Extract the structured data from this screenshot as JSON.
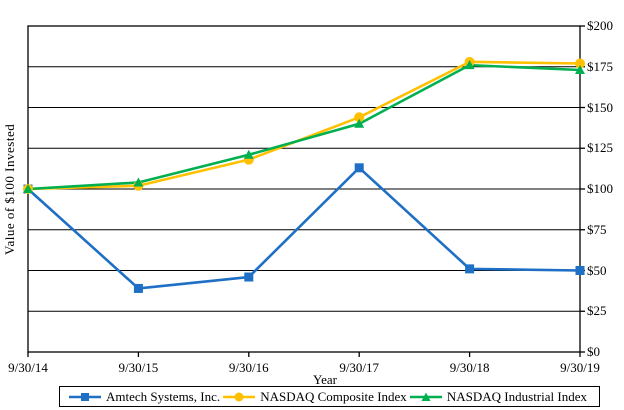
{
  "chart_data": {
    "type": "line",
    "x_categories": [
      "9/30/14",
      "9/30/15",
      "9/30/16",
      "9/30/17",
      "9/30/18",
      "9/30/19"
    ],
    "series": [
      {
        "name": "Amtech Systems, Inc.",
        "color": "#1F6FC5",
        "marker": "square",
        "values": [
          100,
          39,
          46,
          113,
          51,
          50
        ]
      },
      {
        "name": "NASDAQ Composite Index",
        "color": "#FFC000",
        "marker": "circle",
        "values": [
          100,
          102,
          118,
          144,
          178,
          177
        ]
      },
      {
        "name": "NASDAQ Industrial Index",
        "color": "#00B050",
        "marker": "triangle",
        "values": [
          100,
          104,
          121,
          140,
          176,
          173
        ]
      }
    ],
    "xlabel": "Year",
    "ylabel": "Value of $100 Invested",
    "ylim": [
      0,
      200
    ],
    "yticks": [
      {
        "label": "$200",
        "value": 200
      },
      {
        "label": "$175",
        "value": 175
      },
      {
        "label": "$150",
        "value": 150
      },
      {
        "label": "$125",
        "value": 125
      },
      {
        "label": "$100",
        "value": 100
      },
      {
        "label": "$75",
        "value": 75
      },
      {
        "label": "$50",
        "value": 50
      },
      {
        "label": "$25",
        "value": 25
      },
      {
        "label": "$0",
        "value": 0
      }
    ],
    "grid": true,
    "grid_color": "#000000",
    "axis_color": "#000000",
    "y_axis_side": "right",
    "legend_position": "bottom"
  }
}
